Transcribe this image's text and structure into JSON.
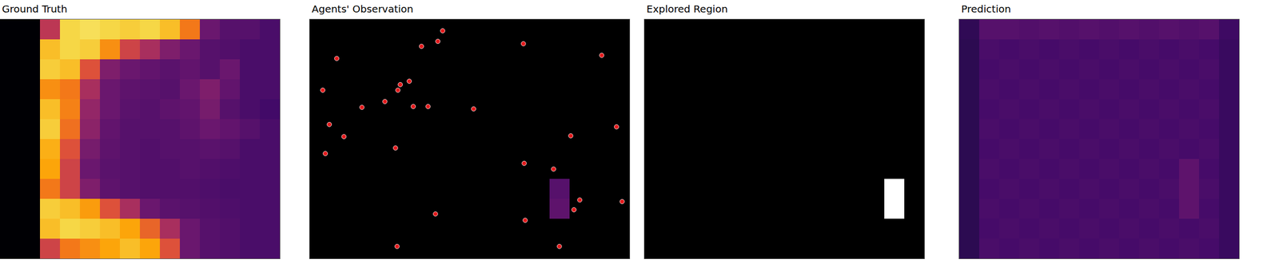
{
  "chart_data": [
    {
      "type": "heatmap",
      "title": "Ground Truth",
      "xlim": [
        0,
        14
      ],
      "ylim": [
        12,
        0
      ],
      "zlim": [
        0,
        1
      ],
      "tick_labels": false,
      "z": [
        [
          0,
          0,
          0.5,
          0.9,
          0.92,
          0.9,
          0.88,
          0.9,
          0.85,
          0.7,
          0.3,
          0.25,
          0.25,
          0.22
        ],
        [
          0,
          0,
          0.85,
          0.9,
          0.88,
          0.75,
          0.55,
          0.45,
          0.35,
          0.3,
          0.25,
          0.24,
          0.22,
          0.22
        ],
        [
          0,
          0,
          0.88,
          0.85,
          0.6,
          0.35,
          0.3,
          0.28,
          0.26,
          0.28,
          0.25,
          0.3,
          0.22,
          0.22
        ],
        [
          0,
          0,
          0.75,
          0.7,
          0.45,
          0.3,
          0.27,
          0.26,
          0.25,
          0.3,
          0.35,
          0.28,
          0.22,
          0.22
        ],
        [
          0,
          0,
          0.85,
          0.72,
          0.4,
          0.3,
          0.26,
          0.25,
          0.27,
          0.28,
          0.33,
          0.25,
          0.22,
          0.2
        ],
        [
          0,
          0,
          0.88,
          0.68,
          0.38,
          0.28,
          0.25,
          0.25,
          0.25,
          0.27,
          0.3,
          0.28,
          0.25,
          0.22
        ],
        [
          0,
          0,
          0.82,
          0.6,
          0.33,
          0.27,
          0.25,
          0.24,
          0.25,
          0.25,
          0.26,
          0.25,
          0.22,
          0.22
        ],
        [
          0,
          0,
          0.8,
          0.55,
          0.3,
          0.26,
          0.25,
          0.24,
          0.24,
          0.25,
          0.24,
          0.23,
          0.22,
          0.22
        ],
        [
          0,
          0,
          0.7,
          0.55,
          0.35,
          0.27,
          0.25,
          0.24,
          0.24,
          0.24,
          0.23,
          0.22,
          0.22,
          0.22
        ],
        [
          0,
          0,
          0.88,
          0.85,
          0.78,
          0.6,
          0.45,
          0.3,
          0.26,
          0.25,
          0.24,
          0.23,
          0.22,
          0.22
        ],
        [
          0,
          0,
          0.85,
          0.9,
          0.88,
          0.85,
          0.8,
          0.65,
          0.45,
          0.3,
          0.25,
          0.24,
          0.22,
          0.22
        ],
        [
          0,
          0,
          0.55,
          0.7,
          0.75,
          0.8,
          0.85,
          0.8,
          0.6,
          0.3,
          0.25,
          0.24,
          0.22,
          0.22
        ]
      ]
    },
    {
      "type": "heatmap",
      "title": "Agents' Observation",
      "xlim": [
        0,
        16
      ],
      "ylim": [
        12,
        0
      ],
      "zlim": [
        0,
        1
      ],
      "tick_labels": false,
      "z": [
        [
          null,
          null,
          null,
          null,
          null,
          null,
          null,
          null,
          null,
          null,
          null,
          null,
          null,
          null
        ],
        [
          null,
          null,
          null,
          null,
          null,
          null,
          null,
          null,
          null,
          null,
          null,
          null,
          null,
          null
        ],
        [
          null,
          null,
          null,
          null,
          null,
          null,
          null,
          null,
          null,
          null,
          null,
          null,
          null,
          null
        ],
        [
          null,
          null,
          null,
          null,
          null,
          null,
          null,
          null,
          null,
          null,
          null,
          null,
          null,
          null
        ],
        [
          null,
          null,
          null,
          null,
          null,
          null,
          null,
          null,
          null,
          null,
          null,
          null,
          null,
          null
        ],
        [
          null,
          null,
          null,
          null,
          null,
          null,
          null,
          null,
          null,
          null,
          null,
          null,
          null,
          null
        ],
        [
          null,
          null,
          null,
          null,
          null,
          null,
          null,
          null,
          null,
          null,
          null,
          null,
          null,
          null
        ],
        [
          null,
          null,
          null,
          null,
          null,
          null,
          null,
          null,
          null,
          null,
          null,
          null,
          null,
          null
        ],
        [
          null,
          null,
          null,
          null,
          null,
          null,
          null,
          null,
          null,
          null,
          null,
          null,
          0.25,
          null
        ],
        [
          null,
          null,
          null,
          null,
          null,
          null,
          null,
          null,
          null,
          null,
          null,
          null,
          0.27,
          null
        ],
        [
          null,
          null,
          null,
          null,
          null,
          null,
          null,
          null,
          null,
          null,
          null,
          null,
          null,
          null
        ],
        [
          null,
          null,
          null,
          null,
          null,
          null,
          null,
          null,
          null,
          null,
          null,
          null,
          null,
          null
        ]
      ],
      "series": [
        {
          "type": "scatter",
          "color": "#e31a1c",
          "marker": "circle",
          "x": [
            6.65,
            5.59,
            6.41,
            10.69,
            14.61,
            1.35,
            0.65,
            4.98,
            4.53,
            4.41,
            3.76,
            2.61,
            5.18,
            5.92,
            8.2,
            15.35,
            0.98,
            1.71,
            13.06,
            4.29,
            0.78,
            10.73,
            12.2,
            13.51,
            13.22,
            15.63,
            6.29,
            10.78,
            4.37,
            12.49
          ],
          "y": [
            0.57,
            1.35,
            1.1,
            1.22,
            1.8,
            1.96,
            3.55,
            3.1,
            3.27,
            3.55,
            4.12,
            4.41,
            4.37,
            4.37,
            4.49,
            5.39,
            5.27,
            5.88,
            5.84,
            6.45,
            6.73,
            7.22,
            7.51,
            9.06,
            9.55,
            9.14,
            9.76,
            10.08,
            11.39,
            11.39
          ]
        }
      ]
    },
    {
      "type": "heatmap",
      "title": "Explored Region",
      "xlim": [
        0,
        14
      ],
      "ylim": [
        12,
        0
      ],
      "zlim": [
        0,
        1
      ],
      "tick_labels": false,
      "color": "#ffffff",
      "z": [
        [
          0,
          0,
          0,
          0,
          0,
          0,
          0,
          0,
          0,
          0,
          0,
          0,
          0,
          0
        ],
        [
          0,
          0,
          0,
          0,
          0,
          0,
          0,
          0,
          0,
          0,
          0,
          0,
          0,
          0
        ],
        [
          0,
          0,
          0,
          0,
          0,
          0,
          0,
          0,
          0,
          0,
          0,
          0,
          0,
          0
        ],
        [
          0,
          0,
          0,
          0,
          0,
          0,
          0,
          0,
          0,
          0,
          0,
          0,
          0,
          0
        ],
        [
          0,
          0,
          0,
          0,
          0,
          0,
          0,
          0,
          0,
          0,
          0,
          0,
          0,
          0
        ],
        [
          0,
          0,
          0,
          0,
          0,
          0,
          0,
          0,
          0,
          0,
          0,
          0,
          0,
          0
        ],
        [
          0,
          0,
          0,
          0,
          0,
          0,
          0,
          0,
          0,
          0,
          0,
          0,
          0,
          0
        ],
        [
          0,
          0,
          0,
          0,
          0,
          0,
          0,
          0,
          0,
          0,
          0,
          0,
          0,
          0
        ],
        [
          0,
          0,
          0,
          0,
          0,
          0,
          0,
          0,
          0,
          0,
          0,
          0,
          1,
          0
        ],
        [
          0,
          0,
          0,
          0,
          0,
          0,
          0,
          0,
          0,
          0,
          0,
          0,
          1,
          0
        ],
        [
          0,
          0,
          0,
          0,
          0,
          0,
          0,
          0,
          0,
          0,
          0,
          0,
          0,
          0
        ],
        [
          0,
          0,
          0,
          0,
          0,
          0,
          0,
          0,
          0,
          0,
          0,
          0,
          0,
          0
        ]
      ]
    },
    {
      "type": "heatmap",
      "title": "Prediction",
      "xlim": [
        0,
        14
      ],
      "ylim": [
        12,
        0
      ],
      "zlim": [
        0,
        1
      ],
      "tick_labels": false,
      "z": [
        [
          0.16,
          0.25,
          0.25,
          0.24,
          0.25,
          0.24,
          0.25,
          0.24,
          0.25,
          0.24,
          0.25,
          0.24,
          0.25,
          0.19
        ],
        [
          0.15,
          0.22,
          0.21,
          0.22,
          0.21,
          0.22,
          0.21,
          0.22,
          0.21,
          0.22,
          0.21,
          0.22,
          0.21,
          0.18
        ],
        [
          0.15,
          0.21,
          0.22,
          0.21,
          0.22,
          0.21,
          0.22,
          0.21,
          0.22,
          0.21,
          0.22,
          0.21,
          0.22,
          0.18
        ],
        [
          0.15,
          0.22,
          0.21,
          0.22,
          0.21,
          0.22,
          0.21,
          0.22,
          0.21,
          0.22,
          0.21,
          0.22,
          0.21,
          0.18
        ],
        [
          0.15,
          0.21,
          0.22,
          0.21,
          0.22,
          0.21,
          0.22,
          0.21,
          0.22,
          0.21,
          0.22,
          0.21,
          0.22,
          0.18
        ],
        [
          0.15,
          0.22,
          0.21,
          0.22,
          0.21,
          0.22,
          0.21,
          0.22,
          0.21,
          0.22,
          0.21,
          0.22,
          0.21,
          0.18
        ],
        [
          0.15,
          0.21,
          0.22,
          0.21,
          0.22,
          0.21,
          0.22,
          0.21,
          0.22,
          0.21,
          0.22,
          0.21,
          0.22,
          0.18
        ],
        [
          0.15,
          0.22,
          0.21,
          0.22,
          0.21,
          0.22,
          0.21,
          0.22,
          0.21,
          0.22,
          0.21,
          0.27,
          0.21,
          0.18
        ],
        [
          0.15,
          0.21,
          0.22,
          0.21,
          0.22,
          0.21,
          0.22,
          0.21,
          0.22,
          0.21,
          0.22,
          0.27,
          0.22,
          0.18
        ],
        [
          0.15,
          0.22,
          0.21,
          0.22,
          0.21,
          0.22,
          0.21,
          0.22,
          0.21,
          0.22,
          0.21,
          0.27,
          0.21,
          0.18
        ],
        [
          0.15,
          0.21,
          0.22,
          0.21,
          0.22,
          0.21,
          0.22,
          0.21,
          0.22,
          0.21,
          0.22,
          0.21,
          0.22,
          0.18
        ],
        [
          0.15,
          0.22,
          0.21,
          0.22,
          0.21,
          0.22,
          0.21,
          0.22,
          0.21,
          0.22,
          0.21,
          0.22,
          0.21,
          0.18
        ]
      ]
    }
  ]
}
